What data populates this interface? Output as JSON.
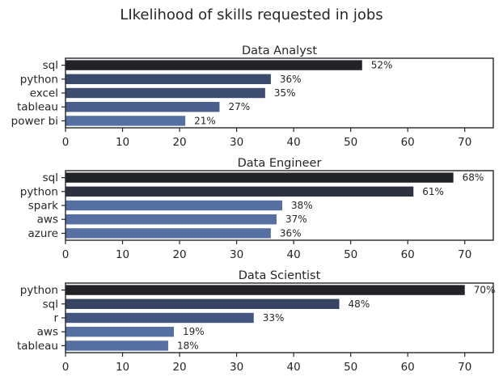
{
  "chart_data": {
    "type": "bar",
    "orientation": "horizontal",
    "title": "LIkelihood of skills requested in jobs",
    "xlim": [
      0,
      75
    ],
    "xticks": [
      0,
      10,
      20,
      30,
      40,
      50,
      60,
      70
    ],
    "grid": false,
    "value_label_suffix": "%",
    "colors": {
      "dark": "#24272c",
      "mid": "#3e4f73",
      "light": "#5670a3",
      "axis": "#262626"
    },
    "subplots": [
      {
        "title": "Data Analyst",
        "categories": [
          "sql",
          "python",
          "excel",
          "tableau",
          "power bi"
        ],
        "values": [
          52,
          36,
          35,
          27,
          21
        ],
        "bar_colors": [
          "#222326",
          "#3a4a6c",
          "#3c4d70",
          "#4b5f8d",
          "#5570a2"
        ]
      },
      {
        "title": "Data Engineer",
        "categories": [
          "sql",
          "python",
          "spark",
          "aws",
          "azure"
        ],
        "values": [
          68,
          61,
          38,
          37,
          36
        ],
        "bar_colors": [
          "#222326",
          "#2e3240",
          "#5670a3",
          "#5670a3",
          "#5670a3"
        ]
      },
      {
        "title": "Data Scientist",
        "categories": [
          "python",
          "sql",
          "r",
          "aws",
          "tableau"
        ],
        "values": [
          70,
          48,
          33,
          19,
          18
        ],
        "bar_colors": [
          "#222326",
          "#374463",
          "#435680",
          "#5670a3",
          "#5670a3"
        ]
      }
    ]
  }
}
